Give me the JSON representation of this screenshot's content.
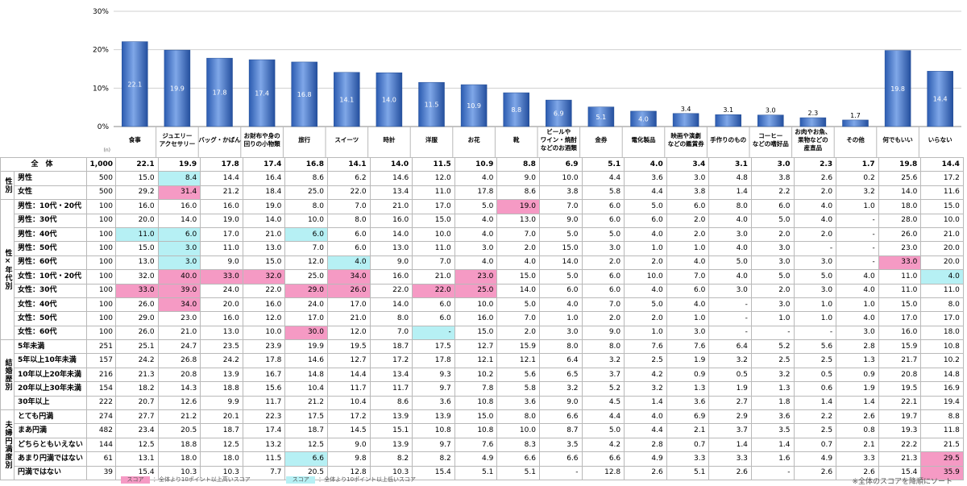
{
  "chart_data": {
    "type": "bar",
    "yaxis": {
      "ticks": [
        "30%",
        "20%",
        "10%",
        "0%"
      ],
      "ylim": [
        0,
        30
      ]
    },
    "n_label": "(n)",
    "pct_label": "(%)",
    "categories": [
      "食事",
      "ジュエリー\nアクセサリー",
      "バッグ・かばん",
      "お財布や身の\n回りの小物類",
      "旅行",
      "スイーツ",
      "時計",
      "洋服",
      "お花",
      "靴",
      "ビールや\nワイン・焼酎\nなどのお酒類",
      "金券",
      "電化製品",
      "映画や演劇\nなどの鑑賞券",
      "手作りのもの",
      "コーヒー\nなどの嗜好品",
      "お肉やお魚、\n果物などの\n産直品",
      "その他",
      "何でもいい",
      "いらない"
    ],
    "values": [
      22.1,
      19.9,
      17.8,
      17.4,
      16.8,
      14.1,
      14.0,
      11.5,
      10.9,
      8.8,
      6.9,
      5.1,
      4.0,
      3.4,
      3.1,
      3.0,
      2.3,
      1.7,
      19.8,
      14.4
    ],
    "rows": [
      {
        "group": "",
        "label": "全　体",
        "n": "1,000",
        "v": [
          "22.1",
          "19.9",
          "17.8",
          "17.4",
          "16.8",
          "14.1",
          "14.0",
          "11.5",
          "10.9",
          "8.8",
          "6.9",
          "5.1",
          "4.0",
          "3.4",
          "3.1",
          "3.0",
          "2.3",
          "1.7",
          "19.8",
          "14.4"
        ]
      },
      {
        "group": "性別",
        "label": "男性",
        "n": "500",
        "v": [
          "15.0",
          "8.4",
          "14.4",
          "16.4",
          "8.6",
          "6.2",
          "14.6",
          "12.0",
          "4.0",
          "9.0",
          "10.0",
          "4.4",
          "3.6",
          "3.0",
          "4.8",
          "3.8",
          "2.6",
          "0.2",
          "25.6",
          "17.2"
        ]
      },
      {
        "group": "",
        "label": "女性",
        "n": "500",
        "v": [
          "29.2",
          "31.4",
          "21.2",
          "18.4",
          "25.0",
          "22.0",
          "13.4",
          "11.0",
          "17.8",
          "8.6",
          "3.8",
          "5.8",
          "4.4",
          "3.8",
          "1.4",
          "2.2",
          "2.0",
          "3.2",
          "14.0",
          "11.6"
        ]
      },
      {
        "group": "性×年代別",
        "label": "男性：10代・20代",
        "n": "100",
        "v": [
          "16.0",
          "16.0",
          "16.0",
          "19.0",
          "8.0",
          "7.0",
          "21.0",
          "17.0",
          "5.0",
          "19.0",
          "7.0",
          "6.0",
          "5.0",
          "6.0",
          "8.0",
          "6.0",
          "4.0",
          "1.0",
          "18.0",
          "15.0"
        ]
      },
      {
        "group": "",
        "label": "男性：30代",
        "n": "100",
        "v": [
          "20.0",
          "14.0",
          "19.0",
          "14.0",
          "10.0",
          "8.0",
          "16.0",
          "15.0",
          "4.0",
          "13.0",
          "9.0",
          "6.0",
          "6.0",
          "2.0",
          "4.0",
          "5.0",
          "4.0",
          "-",
          "28.0",
          "10.0"
        ]
      },
      {
        "group": "",
        "label": "男性：40代",
        "n": "100",
        "v": [
          "11.0",
          "6.0",
          "17.0",
          "21.0",
          "6.0",
          "6.0",
          "14.0",
          "10.0",
          "4.0",
          "7.0",
          "5.0",
          "5.0",
          "4.0",
          "2.0",
          "3.0",
          "2.0",
          "2.0",
          "-",
          "26.0",
          "21.0"
        ]
      },
      {
        "group": "",
        "label": "男性：50代",
        "n": "100",
        "v": [
          "15.0",
          "3.0",
          "11.0",
          "13.0",
          "7.0",
          "6.0",
          "13.0",
          "11.0",
          "3.0",
          "2.0",
          "15.0",
          "3.0",
          "1.0",
          "1.0",
          "4.0",
          "3.0",
          "-",
          "-",
          "23.0",
          "20.0"
        ]
      },
      {
        "group": "",
        "label": "男性：60代",
        "n": "100",
        "v": [
          "13.0",
          "3.0",
          "9.0",
          "15.0",
          "12.0",
          "4.0",
          "9.0",
          "7.0",
          "4.0",
          "4.0",
          "14.0",
          "2.0",
          "2.0",
          "4.0",
          "5.0",
          "3.0",
          "3.0",
          "-",
          "33.0",
          "20.0"
        ]
      },
      {
        "group": "",
        "label": "女性：10代・20代",
        "n": "100",
        "v": [
          "32.0",
          "40.0",
          "33.0",
          "32.0",
          "25.0",
          "34.0",
          "16.0",
          "21.0",
          "23.0",
          "15.0",
          "5.0",
          "6.0",
          "10.0",
          "7.0",
          "4.0",
          "5.0",
          "5.0",
          "4.0",
          "11.0",
          "4.0"
        ]
      },
      {
        "group": "",
        "label": "女性：30代",
        "n": "100",
        "v": [
          "33.0",
          "39.0",
          "24.0",
          "22.0",
          "29.0",
          "26.0",
          "22.0",
          "22.0",
          "25.0",
          "14.0",
          "6.0",
          "6.0",
          "4.0",
          "6.0",
          "3.0",
          "2.0",
          "3.0",
          "4.0",
          "11.0",
          "11.0"
        ]
      },
      {
        "group": "",
        "label": "女性：40代",
        "n": "100",
        "v": [
          "26.0",
          "34.0",
          "20.0",
          "16.0",
          "24.0",
          "17.0",
          "14.0",
          "6.0",
          "10.0",
          "5.0",
          "4.0",
          "7.0",
          "5.0",
          "4.0",
          "-",
          "3.0",
          "1.0",
          "1.0",
          "15.0",
          "8.0"
        ]
      },
      {
        "group": "",
        "label": "女性：50代",
        "n": "100",
        "v": [
          "29.0",
          "23.0",
          "16.0",
          "12.0",
          "17.0",
          "21.0",
          "8.0",
          "6.0",
          "16.0",
          "7.0",
          "1.0",
          "2.0",
          "2.0",
          "1.0",
          "-",
          "1.0",
          "1.0",
          "4.0",
          "17.0",
          "17.0"
        ]
      },
      {
        "group": "",
        "label": "女性：60代",
        "n": "100",
        "v": [
          "26.0",
          "21.0",
          "13.0",
          "10.0",
          "30.0",
          "12.0",
          "7.0",
          "-",
          "15.0",
          "2.0",
          "3.0",
          "9.0",
          "1.0",
          "3.0",
          "-",
          "-",
          "-",
          "3.0",
          "16.0",
          "18.0"
        ]
      },
      {
        "group": "結婚歴別",
        "label": "5年未満",
        "n": "251",
        "v": [
          "25.1",
          "24.7",
          "23.5",
          "23.9",
          "19.9",
          "19.5",
          "18.7",
          "17.5",
          "12.7",
          "15.9",
          "8.0",
          "8.0",
          "7.6",
          "7.6",
          "6.4",
          "5.2",
          "5.6",
          "2.8",
          "15.9",
          "10.8"
        ]
      },
      {
        "group": "",
        "label": "5年以上10年未満",
        "n": "157",
        "v": [
          "24.2",
          "26.8",
          "24.2",
          "17.8",
          "14.6",
          "12.7",
          "17.2",
          "17.8",
          "12.1",
          "12.1",
          "6.4",
          "3.2",
          "2.5",
          "1.9",
          "3.2",
          "2.5",
          "2.5",
          "1.3",
          "21.7",
          "10.2"
        ]
      },
      {
        "group": "",
        "label": "10年以上20年未満",
        "n": "216",
        "v": [
          "21.3",
          "20.8",
          "13.9",
          "16.7",
          "14.8",
          "14.4",
          "13.4",
          "9.3",
          "10.2",
          "5.6",
          "6.5",
          "3.7",
          "4.2",
          "0.9",
          "0.5",
          "3.2",
          "0.5",
          "0.9",
          "20.8",
          "14.8"
        ]
      },
      {
        "group": "",
        "label": "20年以上30年未満",
        "n": "154",
        "v": [
          "18.2",
          "14.3",
          "18.8",
          "15.6",
          "10.4",
          "11.7",
          "11.7",
          "9.7",
          "7.8",
          "5.8",
          "3.2",
          "5.2",
          "3.2",
          "1.3",
          "1.9",
          "1.3",
          "0.6",
          "1.9",
          "19.5",
          "16.9"
        ]
      },
      {
        "group": "",
        "label": "30年以上",
        "n": "222",
        "v": [
          "20.7",
          "12.6",
          "9.9",
          "11.7",
          "21.2",
          "10.4",
          "8.6",
          "3.6",
          "10.8",
          "3.6",
          "9.0",
          "4.5",
          "1.4",
          "3.6",
          "2.7",
          "1.8",
          "1.4",
          "1.4",
          "22.1",
          "19.4"
        ]
      },
      {
        "group": "夫婦円満度別",
        "label": "とても円満",
        "n": "274",
        "v": [
          "27.7",
          "21.2",
          "20.1",
          "22.3",
          "17.5",
          "17.2",
          "13.9",
          "13.9",
          "15.0",
          "8.0",
          "6.6",
          "4.4",
          "4.0",
          "6.9",
          "2.9",
          "3.6",
          "2.2",
          "2.6",
          "19.7",
          "8.8"
        ]
      },
      {
        "group": "",
        "label": "まあ円満",
        "n": "482",
        "v": [
          "23.4",
          "20.5",
          "18.7",
          "17.4",
          "18.7",
          "14.5",
          "15.1",
          "10.8",
          "10.8",
          "10.0",
          "8.7",
          "5.0",
          "4.4",
          "2.1",
          "3.7",
          "3.5",
          "2.5",
          "0.8",
          "19.3",
          "11.8"
        ]
      },
      {
        "group": "",
        "label": "どちらともいえない",
        "n": "144",
        "v": [
          "12.5",
          "18.8",
          "12.5",
          "13.2",
          "12.5",
          "9.0",
          "13.9",
          "9.7",
          "7.6",
          "8.3",
          "3.5",
          "4.2",
          "2.8",
          "0.7",
          "1.4",
          "1.4",
          "0.7",
          "2.1",
          "22.2",
          "21.5"
        ]
      },
      {
        "group": "",
        "label": "あまり円満ではない",
        "n": "61",
        "v": [
          "13.1",
          "18.0",
          "18.0",
          "11.5",
          "6.6",
          "9.8",
          "8.2",
          "8.2",
          "4.9",
          "6.6",
          "6.6",
          "6.6",
          "4.9",
          "3.3",
          "3.3",
          "1.6",
          "4.9",
          "3.3",
          "21.3",
          "29.5"
        ]
      },
      {
        "group": "",
        "label": "円満ではない",
        "n": "39",
        "v": [
          "15.4",
          "10.3",
          "10.3",
          "7.7",
          "20.5",
          "12.8",
          "10.3",
          "15.4",
          "5.1",
          "5.1",
          "-",
          "12.8",
          "2.6",
          "5.1",
          "2.6",
          "-",
          "2.6",
          "2.6",
          "15.4",
          "35.9"
        ]
      }
    ],
    "legend": {
      "swatch": "スコア",
      "high_text": "：全体より10ポイント以上高いスコア",
      "low_text": "：全体より10ポイント以上低いスコア",
      "high_color": "#f59ac4",
      "low_color": "#b6f0f4",
      "bar_color": "#3a6fc4"
    },
    "sort_note": "※全体のスコアを降順にソート"
  }
}
